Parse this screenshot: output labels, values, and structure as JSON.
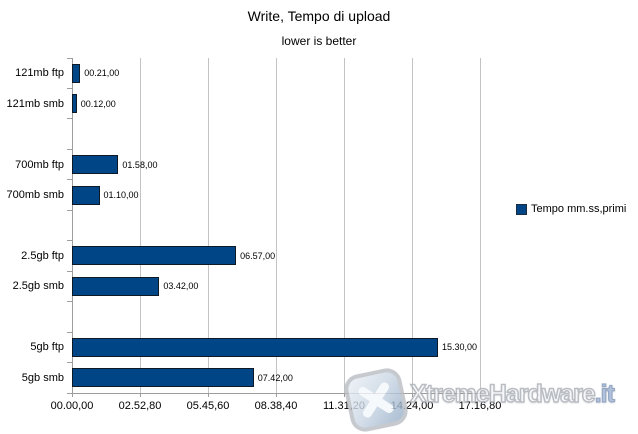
{
  "header": {
    "title": "Write, Tempo di upload",
    "subtitle": "lower is better"
  },
  "legend": {
    "label": "Tempo mm.ss,primi",
    "swatch_color": "#004586"
  },
  "watermark": {
    "brand": "XtremeHardware",
    "tld": ".it"
  },
  "chart_data": {
    "type": "bar",
    "orientation": "horizontal",
    "title": "Write, Tempo di upload",
    "subtitle": "lower is better",
    "categories": [
      "121mb ftp",
      "121mb smb",
      "700mb ftp",
      "700mb smb",
      "2.5gb ftp",
      "2.5gb smb",
      "5gb ftp",
      "5gb smb"
    ],
    "category_groups": [
      [
        "121mb ftp",
        "121mb smb"
      ],
      [
        "700mb ftp",
        "700mb smb"
      ],
      [
        "2.5gb ftp",
        "2.5gb smb"
      ],
      [
        "5gb ftp",
        "5gb smb"
      ]
    ],
    "series": [
      {
        "name": "Tempo mm.ss,primi",
        "color": "#004586",
        "value_labels": [
          "00.21,00",
          "00.12,00",
          "01.58,00",
          "01.10,00",
          "06.57,00",
          "03.42,00",
          "15.30,00",
          "07.42,00"
        ],
        "values_seconds": [
          21,
          12,
          118,
          70,
          417,
          222,
          930,
          462
        ]
      }
    ],
    "x_axis": {
      "unit": "mm.ss,primi",
      "tick_labels": [
        "00.00,00",
        "02.52,80",
        "05.45,60",
        "08.38,40",
        "11.31,20",
        "14.24,00",
        "17.16,80"
      ],
      "tick_seconds": [
        0,
        172.8,
        345.6,
        518.4,
        691.2,
        864,
        1036.8
      ],
      "min_seconds": 0,
      "max_seconds": 1036.8
    },
    "grid": "vertical",
    "legend_position": "right",
    "grid_color": "#c3c3c3",
    "axis_color": "#9d9d9d",
    "background": "#ffffff"
  }
}
